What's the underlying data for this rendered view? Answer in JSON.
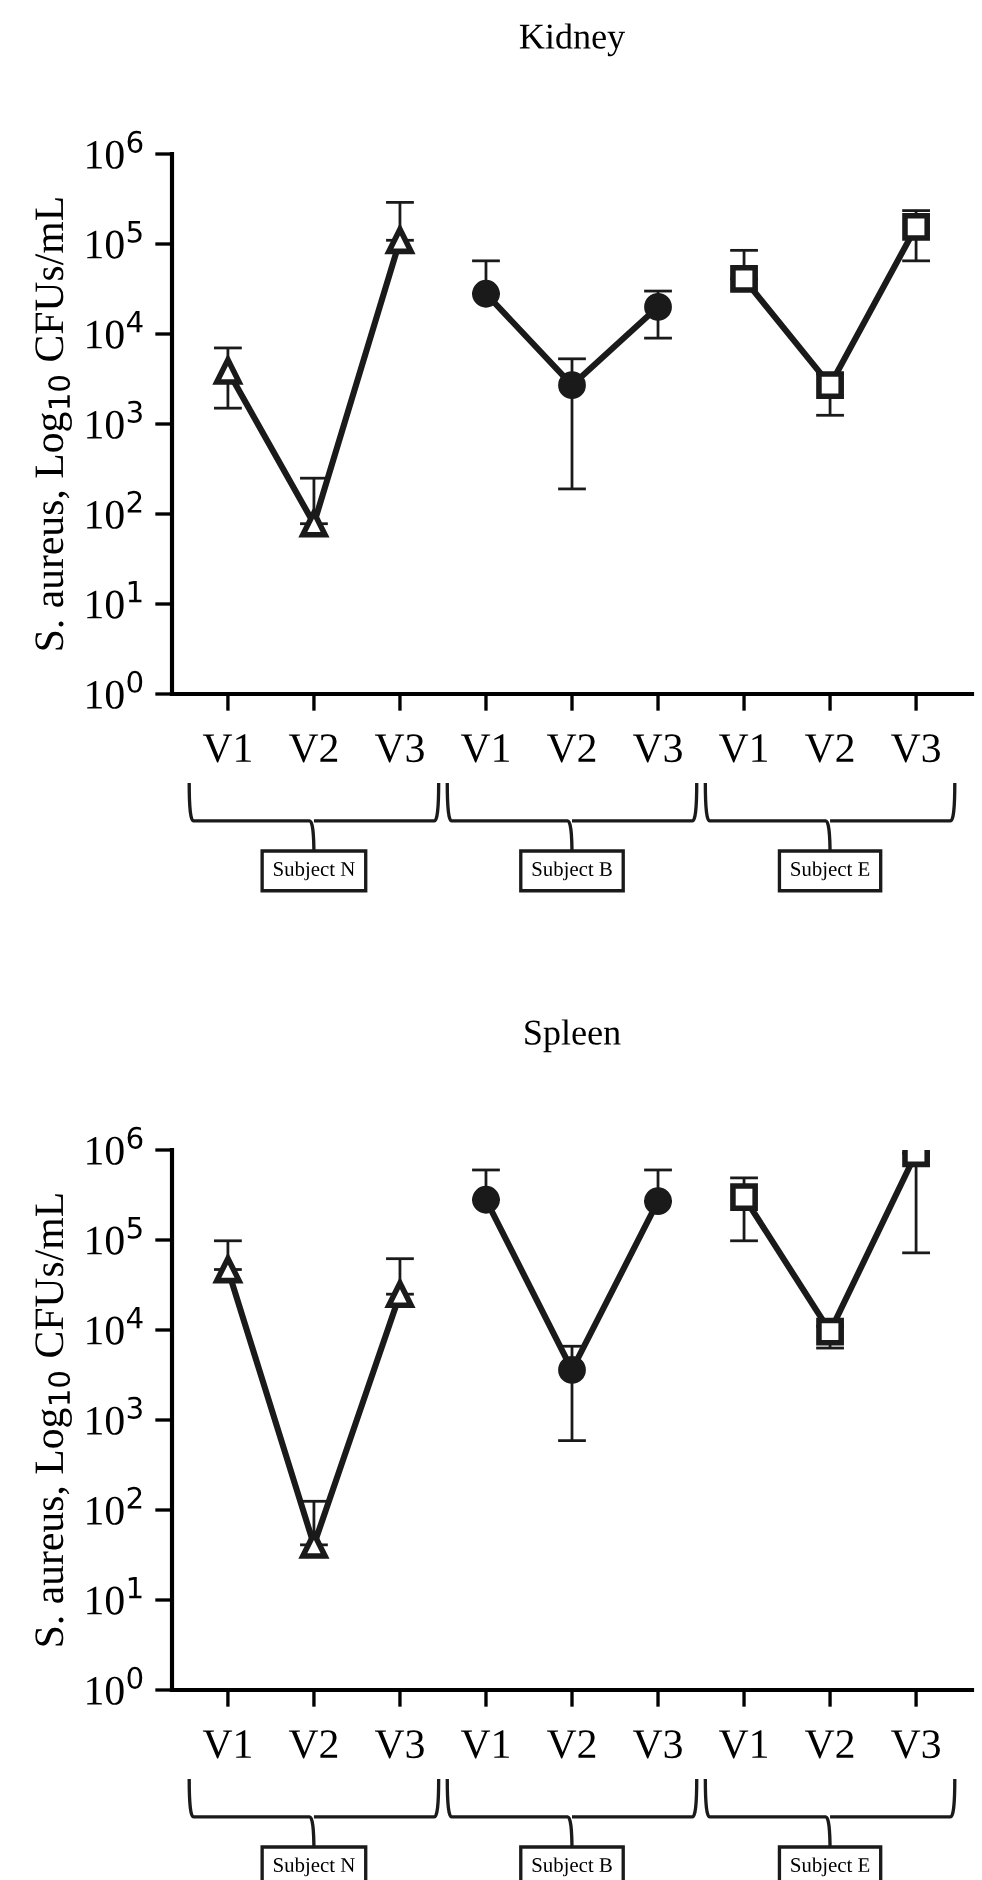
{
  "chart_data": [
    {
      "type": "line",
      "title": "Kidney",
      "ylabel": "S. aureus, Log$_{10}$ CFUs/mL",
      "log": "y",
      "legend": false,
      "categories": [
        "V1",
        "V2",
        "V3",
        "V1",
        "V2",
        "V3",
        "V1",
        "V2",
        "V3"
      ],
      "ylim": [
        1,
        1000000
      ],
      "yticks": [
        {
          "value": 1,
          "label": "10$^{0}$"
        },
        {
          "value": 10,
          "label": "10$^{1}$"
        },
        {
          "value": 100,
          "label": "10$^{2}$"
        },
        {
          "value": 1000,
          "label": "10$^{3}$"
        },
        {
          "value": 10000,
          "label": "10$^{4}$"
        },
        {
          "value": 100000,
          "label": "10$^{5}$"
        },
        {
          "value": 1000000,
          "label": "10$^{6}$"
        }
      ],
      "series": [
        {
          "name": "Subject N",
          "color": "#1a1a1a",
          "marker": "triangle",
          "values": [
            3900,
            78,
            110000,
            null,
            null,
            null,
            null,
            null,
            null
          ],
          "errors": [
            [
              1500,
              7000
            ],
            [
              78,
              250
            ],
            [
              110000,
              290000
            ],
            null,
            null,
            null,
            null,
            null,
            null
          ]
        },
        {
          "name": "Subject B",
          "color": "#1a1a1a",
          "marker": "circle",
          "values": [
            null,
            null,
            null,
            28000,
            2700,
            20000,
            null,
            null,
            null
          ],
          "errors": [
            null,
            null,
            null,
            [
              28000,
              65000
            ],
            [
              190,
              5300
            ],
            [
              9000,
              30000
            ],
            null,
            null,
            null
          ]
        },
        {
          "name": "Subject E",
          "color": "#1a1a1a",
          "marker": "square",
          "values": [
            null,
            null,
            null,
            null,
            null,
            null,
            41000,
            2700,
            155000
          ],
          "errors": [
            null,
            null,
            null,
            null,
            null,
            null,
            [
              41000,
              85000
            ],
            [
              1250,
              3600
            ],
            [
              65000,
              235000
            ]
          ]
        }
      ]
    },
    {
      "type": "line",
      "title": "Spleen",
      "ylabel": "S. aureus, Log$_{10}$ CFUs/mL",
      "log": "y",
      "legend": false,
      "categories": [
        "V1",
        "V2",
        "V3",
        "V1",
        "V2",
        "V3",
        "V1",
        "V2",
        "V3"
      ],
      "ylim": [
        1,
        1000000
      ],
      "yticks": [
        {
          "value": 1,
          "label": "10$^{0}$"
        },
        {
          "value": 10,
          "label": "10$^{1}$"
        },
        {
          "value": 100,
          "label": "10$^{2}$"
        },
        {
          "value": 1000,
          "label": "10$^{3}$"
        },
        {
          "value": 10000,
          "label": "10$^{4}$"
        },
        {
          "value": 100000,
          "label": "10$^{5}$"
        },
        {
          "value": 1000000,
          "label": "10$^{6}$"
        }
      ],
      "series": [
        {
          "name": "Subject N",
          "color": "#1a1a1a",
          "marker": "triangle",
          "values": [
            47000,
            41,
            25000,
            null,
            null,
            null,
            null,
            null,
            null
          ],
          "errors": [
            [
              47000,
              98000
            ],
            [
              41,
              125
            ],
            [
              25000,
              62000
            ],
            null,
            null,
            null,
            null,
            null,
            null
          ]
        },
        {
          "name": "Subject B",
          "color": "#1a1a1a",
          "marker": "circle",
          "values": [
            null,
            null,
            null,
            280000,
            3600,
            270000,
            null,
            null,
            null
          ],
          "errors": [
            null,
            null,
            null,
            [
              280000,
              600000
            ],
            [
              590,
              6600
            ],
            [
              270000,
              600000
            ],
            null,
            null,
            null
          ]
        },
        {
          "name": "Subject E",
          "color": "#1a1a1a",
          "marker": "square",
          "values": [
            null,
            null,
            null,
            null,
            null,
            null,
            300000,
            9600,
            920000
          ],
          "errors": [
            null,
            null,
            null,
            null,
            null,
            null,
            [
              98000,
              490000
            ],
            [
              6300,
              11000
            ],
            [
              72000,
              920000
            ]
          ]
        }
      ]
    }
  ]
}
